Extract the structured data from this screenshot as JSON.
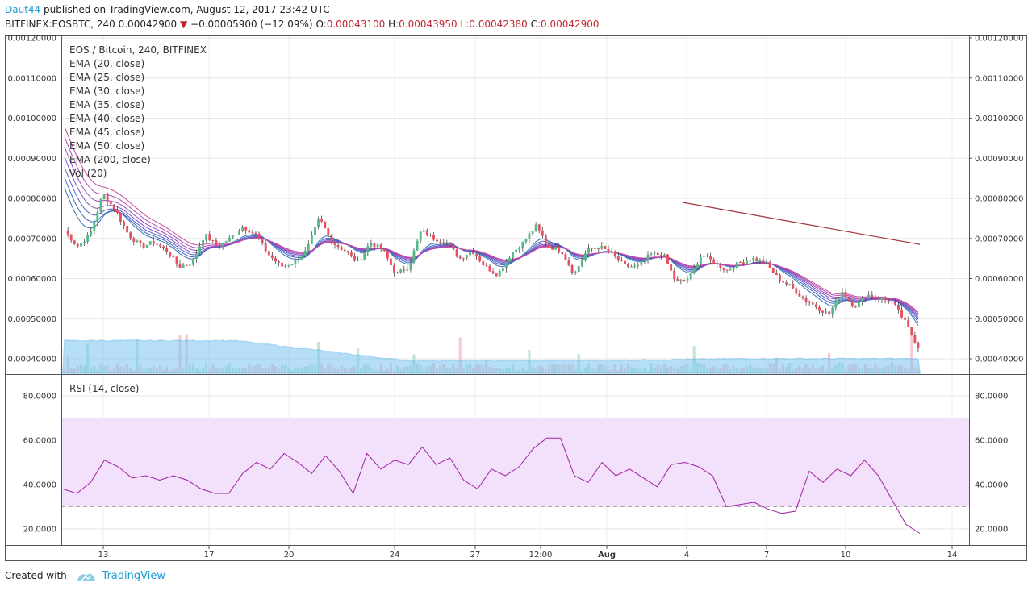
{
  "header": {
    "author": "Daut44",
    "published": "published on TradingView.com, August 12, 2017 23:42 UTC",
    "symbol": "BITFINEX:EOSBTC, 240",
    "last": "0.00042900",
    "arrow": "▼",
    "change": "−0.00005900 (−12.09%)",
    "o_label": "O:",
    "o_val": "0.00043100",
    "h_label": "H:",
    "h_val": "0.00043950",
    "l_label": "L:",
    "l_val": "0.00042380",
    "c_label": "C:",
    "c_val": "0.00042900"
  },
  "footer": {
    "created_with": "Created with",
    "brand": "TradingView"
  },
  "colors": {
    "up": "#53b987",
    "down": "#eb4d5c",
    "rsi": "#a020a0",
    "rsi_band": "#f3e1fb",
    "volume_ma": "#5ab4ec",
    "ema200": "#a0303c"
  },
  "chart_data": [
    {
      "type": "candlestick",
      "legend": [
        "EOS / Bitcoin, 240, BITFINEX",
        "EMA (20, close)",
        "EMA (25, close)",
        "EMA (30, close)",
        "EMA (35, close)",
        "EMA (40, close)",
        "EMA (45, close)",
        "EMA (50, close)",
        "EMA (200, close)",
        "Vol (20)"
      ],
      "y_ticks": [
        "0.00120000",
        "0.00110000",
        "0.00100000",
        "0.00090000",
        "0.00080000",
        "0.00070000",
        "0.00060000",
        "0.00050000",
        "0.00040000"
      ],
      "x_ticks": [
        "13",
        "17",
        "20",
        "24",
        "27",
        "12:00",
        "Aug",
        "4",
        "7",
        "10",
        "14"
      ],
      "price_path": [
        0.00072,
        0.00068,
        0.00071,
        0.00081,
        0.00077,
        0.00071,
        0.00068,
        0.00069,
        0.00067,
        0.00063,
        0.00064,
        0.00071,
        0.00068,
        0.0007,
        0.00073,
        0.00071,
        0.00066,
        0.00063,
        0.00064,
        0.00067,
        0.00075,
        0.00069,
        0.00067,
        0.00064,
        0.00069,
        0.00067,
        0.00061,
        0.00063,
        0.00072,
        0.0007,
        0.00069,
        0.00065,
        0.00067,
        0.00063,
        0.00061,
        0.00066,
        0.00069,
        0.00073,
        0.00068,
        0.00067,
        0.00061,
        0.00067,
        0.00068,
        0.00066,
        0.00063,
        0.00063,
        0.00066,
        0.00066,
        0.00059,
        0.0006,
        0.00066,
        0.00064,
        0.00062,
        0.00064,
        0.00065,
        0.00064,
        0.0006,
        0.00058,
        0.00055,
        0.00053,
        0.00051,
        0.00057,
        0.00053,
        0.00056,
        0.00055,
        0.00054,
        0.00049,
        0.00043
      ],
      "ema200": [
        0.00079,
        0.000685
      ],
      "volume_ma": [
        0.000445,
        0.000445,
        0.000395,
        0.000395,
        0.0004,
        0.0004
      ]
    },
    {
      "type": "line",
      "legend": [
        "RSI (14, close)"
      ],
      "y_ticks": [
        "80.0000",
        "60.0000",
        "40.0000",
        "20.0000"
      ],
      "band": [
        30,
        70
      ],
      "values": [
        38,
        36,
        41,
        51,
        48,
        43,
        44,
        42,
        44,
        42,
        38,
        36,
        36,
        45,
        50,
        47,
        54,
        50,
        45,
        53,
        46,
        36,
        54,
        47,
        51,
        49,
        57,
        49,
        52,
        42,
        38,
        47,
        44,
        48,
        56,
        61,
        61,
        44,
        41,
        50,
        44,
        47,
        43,
        39,
        49,
        50,
        48,
        44,
        30,
        31,
        32,
        29,
        27,
        28,
        46,
        41,
        47,
        44,
        51,
        44,
        33,
        22,
        18
      ]
    }
  ]
}
